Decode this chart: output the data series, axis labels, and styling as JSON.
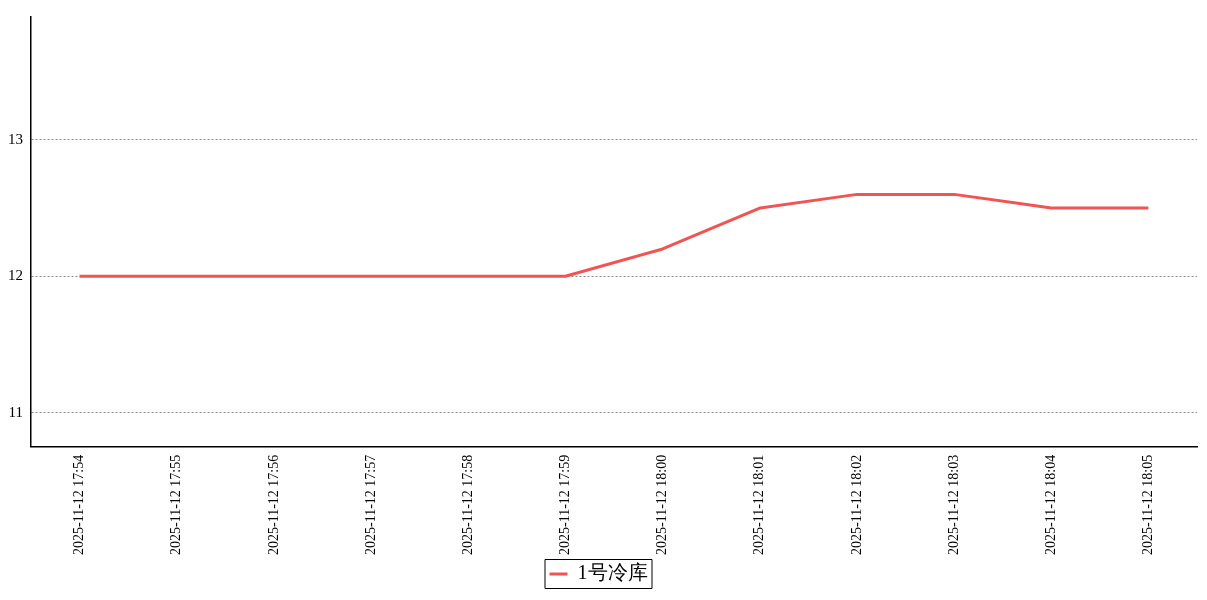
{
  "chart_data": {
    "type": "line",
    "categories": [
      "2025-11-12 17:54",
      "2025-11-12 17:55",
      "2025-11-12 17:56",
      "2025-11-12 17:57",
      "2025-11-12 17:58",
      "2025-11-12 17:59",
      "2025-11-12 18:00",
      "2025-11-12 18:01",
      "2025-11-12 18:02",
      "2025-11-12 18:03",
      "2025-11-12 18:04",
      "2025-11-12 18:05"
    ],
    "series": [
      {
        "name": "1号冷库",
        "color": "#f05454",
        "values": [
          12,
          12,
          12,
          12,
          12,
          12,
          12.2,
          12.5,
          12.6,
          12.6,
          12.5,
          12.5
        ]
      }
    ],
    "ylim": [
      10.75,
      13.9
    ],
    "yticks": [
      11,
      12,
      13
    ],
    "grid": "y",
    "legend": "bottom",
    "marker": "none",
    "line_style": "solid"
  }
}
